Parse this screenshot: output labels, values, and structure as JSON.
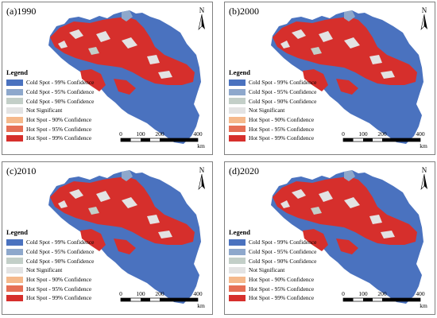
{
  "colors": {
    "cold99": "#4a72bf",
    "cold95": "#8ea8cc",
    "cold90": "#c3cfc8",
    "notsig": "#e3e3e3",
    "hot90": "#f5b98c",
    "hot95": "#e66f55",
    "hot99": "#d62f2c",
    "mapFrame": "#808080"
  },
  "legend": {
    "title": "Legend",
    "items": [
      {
        "label": "Cold Spot - 99% Confidence",
        "color": "#4a72bf"
      },
      {
        "label": "Cold Spot - 95% Confidence",
        "color": "#8ea8cc"
      },
      {
        "label": "Cold Spot - 90% Confidence",
        "color": "#c3cfc8"
      },
      {
        "label": "Not Significant",
        "color": "#e3e3e3"
      },
      {
        "label": "Hot Spot - 90% Confidence",
        "color": "#f5b98c"
      },
      {
        "label": "Hot Spot - 95% Confidence",
        "color": "#e66f55"
      },
      {
        "label": "Hot Spot - 99% Confidence",
        "color": "#d62f2c"
      }
    ]
  },
  "north_arrow": {
    "letter": "N",
    "icon": "north-arrow-icon"
  },
  "scale_bar": {
    "ticks": [
      "0",
      "100",
      "200",
      "400"
    ],
    "unit": "km"
  },
  "panels": [
    {
      "label": "(a)1990",
      "year": "1990"
    },
    {
      "label": "(b)2000",
      "year": "2000"
    },
    {
      "label": "(c)2010",
      "year": "2010"
    },
    {
      "label": "(d)2020",
      "year": "2020"
    }
  ]
}
